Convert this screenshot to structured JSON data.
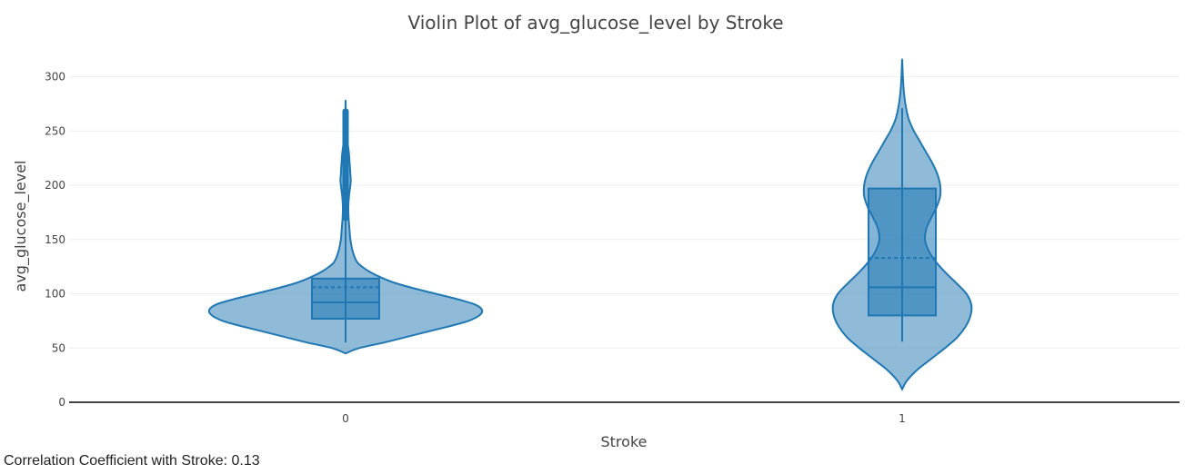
{
  "chart_data": {
    "type": "violin",
    "title": "Violin Plot of avg_glucose_level by Stroke",
    "xlabel": "Stroke",
    "ylabel": "avg_glucose_level",
    "ylim": [
      0,
      315
    ],
    "yticks": [
      0,
      50,
      100,
      150,
      200,
      250,
      300
    ],
    "grid": true,
    "color": "#1f77b4",
    "categories": [
      "0",
      "1"
    ],
    "groups": [
      {
        "category": "0",
        "min": 55,
        "q1": 77,
        "median": 92,
        "mean": 106,
        "q3": 114,
        "whisker_high": 170,
        "max": 272,
        "outliers_from": 170,
        "outliers_to": 268,
        "density": [
          [
            45,
            0.0
          ],
          [
            50,
            0.1
          ],
          [
            55,
            0.28
          ],
          [
            60,
            0.44
          ],
          [
            65,
            0.6
          ],
          [
            70,
            0.76
          ],
          [
            75,
            0.9
          ],
          [
            80,
            0.98
          ],
          [
            85,
            1.0
          ],
          [
            90,
            0.95
          ],
          [
            95,
            0.82
          ],
          [
            100,
            0.66
          ],
          [
            105,
            0.5
          ],
          [
            110,
            0.36
          ],
          [
            115,
            0.26
          ],
          [
            120,
            0.18
          ],
          [
            125,
            0.12
          ],
          [
            130,
            0.08
          ],
          [
            140,
            0.05
          ],
          [
            150,
            0.035
          ],
          [
            160,
            0.028
          ],
          [
            170,
            0.022
          ],
          [
            180,
            0.02
          ],
          [
            190,
            0.025
          ],
          [
            200,
            0.035
          ],
          [
            205,
            0.038
          ],
          [
            210,
            0.035
          ],
          [
            220,
            0.03
          ],
          [
            230,
            0.024
          ],
          [
            240,
            0.014
          ],
          [
            250,
            0.007
          ],
          [
            260,
            0.003
          ],
          [
            270,
            0.001
          ],
          [
            278,
            0.0
          ]
        ]
      },
      {
        "category": "1",
        "min": 56,
        "q1": 80,
        "median": 106,
        "mean": 133,
        "q3": 197,
        "whisker_high": 271,
        "max": 271,
        "density": [
          [
            12,
            0.0
          ],
          [
            20,
            0.07
          ],
          [
            30,
            0.22
          ],
          [
            40,
            0.42
          ],
          [
            50,
            0.62
          ],
          [
            60,
            0.8
          ],
          [
            70,
            0.92
          ],
          [
            80,
            0.99
          ],
          [
            90,
            1.0
          ],
          [
            100,
            0.93
          ],
          [
            110,
            0.78
          ],
          [
            120,
            0.62
          ],
          [
            130,
            0.48
          ],
          [
            140,
            0.38
          ],
          [
            150,
            0.33
          ],
          [
            160,
            0.35
          ],
          [
            170,
            0.42
          ],
          [
            180,
            0.5
          ],
          [
            190,
            0.55
          ],
          [
            200,
            0.55
          ],
          [
            210,
            0.51
          ],
          [
            220,
            0.44
          ],
          [
            230,
            0.35
          ],
          [
            240,
            0.26
          ],
          [
            250,
            0.17
          ],
          [
            260,
            0.1
          ],
          [
            270,
            0.06
          ],
          [
            280,
            0.035
          ],
          [
            290,
            0.02
          ],
          [
            300,
            0.01
          ],
          [
            310,
            0.004
          ],
          [
            316,
            0.0
          ]
        ]
      }
    ]
  },
  "footer": {
    "correlation_text": "Correlation Coefficient with Stroke: 0.13"
  }
}
